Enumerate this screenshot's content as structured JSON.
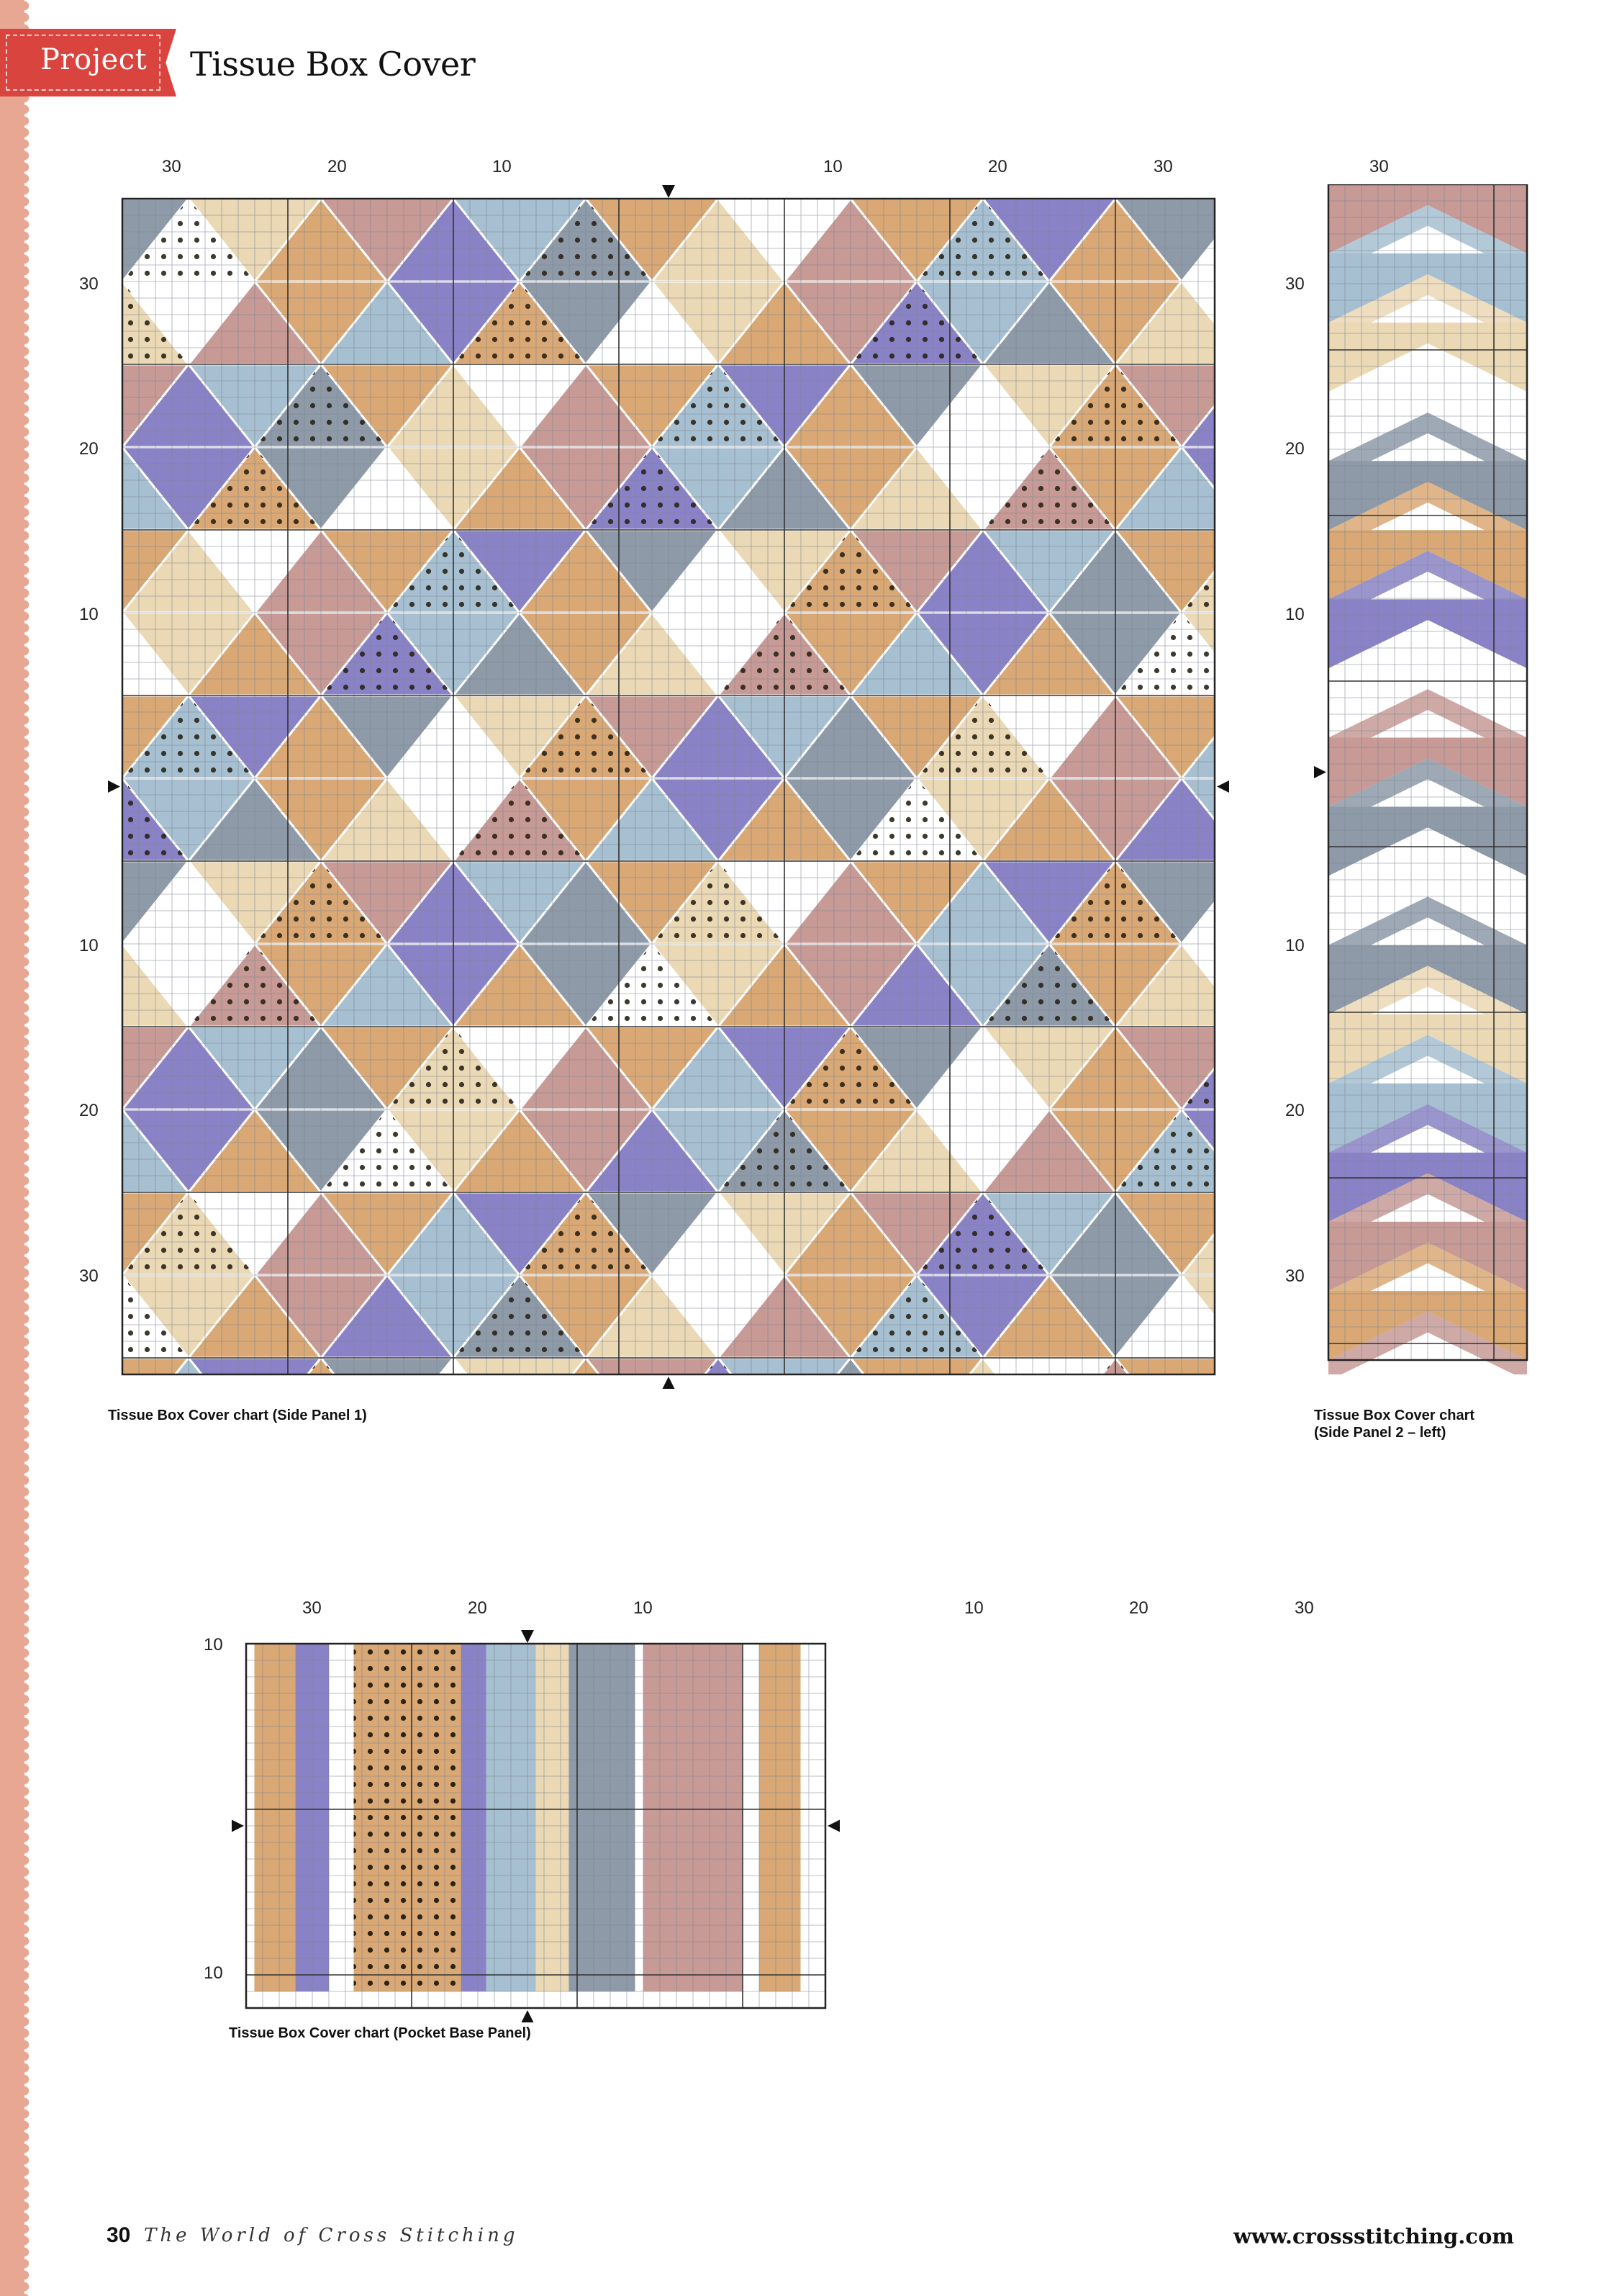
{
  "header": {
    "section_tag": "Project",
    "title": "Tissue Box Cover"
  },
  "colors": {
    "tag_red": "#d9443f",
    "band": "#e7a793",
    "purple": "#8a82c6",
    "tan": "#d9a874",
    "rose": "#c79a96",
    "sky": "#a6bfd1",
    "slate": "#8e9aa8",
    "cream": "#ebd8b4",
    "white": "#ffffff"
  },
  "charts": {
    "side1": {
      "caption": "Tissue Box Cover chart (Side Panel 1)",
      "top_numbers": [
        "30",
        "20",
        "10",
        "10",
        "20",
        "30"
      ],
      "left_numbers": [
        "30",
        "20",
        "10",
        "10",
        "20",
        "30"
      ]
    },
    "side2": {
      "caption_line1": "Tissue Box Cover chart",
      "caption_line2": "(Side Panel 2 – left)",
      "top_numbers": [
        "30"
      ],
      "left_numbers": [
        "30",
        "20",
        "10",
        "10",
        "20",
        "30"
      ]
    },
    "base": {
      "caption": "Tissue Box Cover chart (Pocket Base Panel)",
      "top_numbers": [
        "30",
        "20",
        "10",
        "10",
        "20",
        "30"
      ],
      "left_numbers": [
        "10",
        "10"
      ]
    }
  },
  "footer": {
    "page_number": "30",
    "magazine": "The World of Cross Stitching",
    "website": "www.crossstitching.com"
  }
}
